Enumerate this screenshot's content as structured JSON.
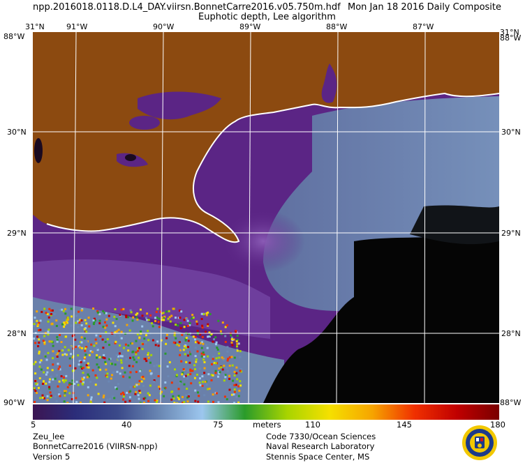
{
  "header": {
    "filename": "npp.2016018.0118.D.L4_DAY.viirsn.BonnetCarre2016.v05.750m.hdf",
    "date_text": "Mon Jan 18 2016 Daily Composite",
    "product_title": "Euphotic depth, Lee algorithm"
  },
  "map": {
    "longitude_labels": [
      "91°W",
      "90°W",
      "89°W",
      "88°W",
      "87°W"
    ],
    "latitude_labels": [
      "30°N",
      "29°N",
      "28°N"
    ],
    "corner_labels": {
      "top_left_lat": "31°N",
      "top_left_lon": "88°W",
      "top_right_lat": "31°N",
      "top_right_lon": "88°W",
      "bottom_left": "90°W",
      "bottom_right": "88°W"
    },
    "colors": {
      "land": "#8c4a10",
      "ocean_shelf": "#5b2585",
      "ocean_mid": "#7b4aa6",
      "ocean_offshore": "#6d86ad",
      "no_data": "#000000",
      "coast": "#ffffff",
      "grid": "#ffffff"
    }
  },
  "colorbar": {
    "min_label": "5",
    "ticks": [
      "40",
      "75",
      "110",
      "145"
    ],
    "max_label": "180",
    "units": "meters",
    "gradient": [
      "#3c1552",
      "#2b2d7a",
      "#3b4a8a",
      "#6a88b4",
      "#9cc6ee",
      "#2a9b2a",
      "#a8d400",
      "#f5e000",
      "#f6a500",
      "#f03000",
      "#c00000",
      "#7a0000"
    ]
  },
  "footer": {
    "product_code": "Zeu_lee",
    "dataset": "BonnetCarre2016 (VIIRSN-npp)",
    "version": "Version 5",
    "org_line1": "Code 7330/Ocean Sciences",
    "org_line2": "Naval Research Laboratory",
    "org_line3": "Stennis Space Center, MS"
  }
}
